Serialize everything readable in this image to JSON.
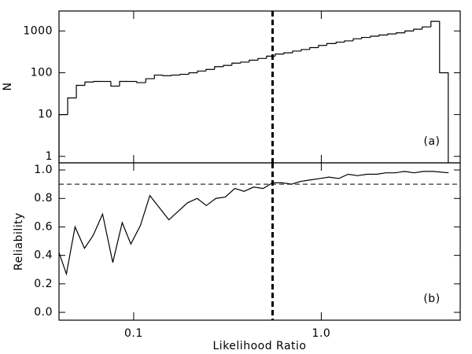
{
  "chart_data": [
    {
      "type": "histogram",
      "ylabel": "N",
      "panel_label": "(a)",
      "color": "#000000",
      "xscale": "log",
      "yscale": "log",
      "xlim": [
        0.04,
        5.5
      ],
      "ylim": [
        0.7,
        3000
      ],
      "yticks": [
        1,
        10,
        100,
        1000
      ],
      "vline": 0.55,
      "bins": [
        0.04,
        0.0445,
        0.0495,
        0.055,
        0.0612,
        0.068,
        0.0756,
        0.0841,
        0.0935,
        0.104,
        0.116,
        0.129,
        0.143,
        0.159,
        0.177,
        0.197,
        0.219,
        0.243,
        0.27,
        0.301,
        0.334,
        0.372,
        0.413,
        0.46,
        0.511,
        0.568,
        0.632,
        0.703,
        0.782,
        0.869,
        0.967,
        1.07,
        1.2,
        1.33,
        1.48,
        1.64,
        1.83,
        2.03,
        2.26,
        2.51,
        2.79,
        3.11,
        3.45,
        3.84,
        4.27,
        4.75
      ],
      "counts": [
        10,
        25,
        50,
        60,
        62,
        62,
        48,
        62,
        62,
        58,
        72,
        88,
        85,
        88,
        92,
        100,
        110,
        120,
        140,
        150,
        170,
        180,
        200,
        220,
        250,
        280,
        300,
        330,
        360,
        400,
        450,
        500,
        540,
        580,
        650,
        700,
        750,
        800,
        850,
        900,
        1000,
        1100,
        1250,
        1700,
        100
      ]
    },
    {
      "type": "line",
      "xlabel": "Likelihood Ratio",
      "ylabel": "Reliability",
      "panel_label": "(b)",
      "color": "#000000",
      "xscale": "log",
      "xlim": [
        0.04,
        5.5
      ],
      "ylim": [
        -0.055,
        1.05
      ],
      "xticks": [
        0.1,
        {
          "value": 1,
          "label": "1.0"
        }
      ],
      "yticks": [
        {
          "value": 0,
          "label": "0.0"
        },
        0.2,
        0.4,
        0.6,
        0.8,
        {
          "value": 1,
          "label": "1.0"
        }
      ],
      "hline": 0.9,
      "vline": 0.55,
      "x": [
        0.04,
        0.0438,
        0.0487,
        0.0547,
        0.0608,
        0.0683,
        0.0774,
        0.0869,
        0.0966,
        0.1086,
        0.122,
        0.154,
        0.194,
        0.218,
        0.244,
        0.274,
        0.308,
        0.346,
        0.388,
        0.436,
        0.49,
        0.55,
        0.617,
        0.693,
        0.778,
        0.873,
        0.981,
        1.1,
        1.24,
        1.39,
        1.56,
        1.75,
        1.97,
        2.21,
        2.48,
        2.78,
        3.12,
        3.51,
        3.94,
        4.77
      ],
      "values": [
        0.42,
        0.27,
        0.6,
        0.45,
        0.54,
        0.69,
        0.35,
        0.63,
        0.48,
        0.61,
        0.82,
        0.65,
        0.77,
        0.8,
        0.75,
        0.8,
        0.81,
        0.87,
        0.85,
        0.88,
        0.87,
        0.91,
        0.91,
        0.9,
        0.92,
        0.93,
        0.94,
        0.95,
        0.94,
        0.97,
        0.96,
        0.97,
        0.97,
        0.98,
        0.98,
        0.99,
        0.98,
        0.99,
        0.99,
        0.98
      ]
    }
  ]
}
